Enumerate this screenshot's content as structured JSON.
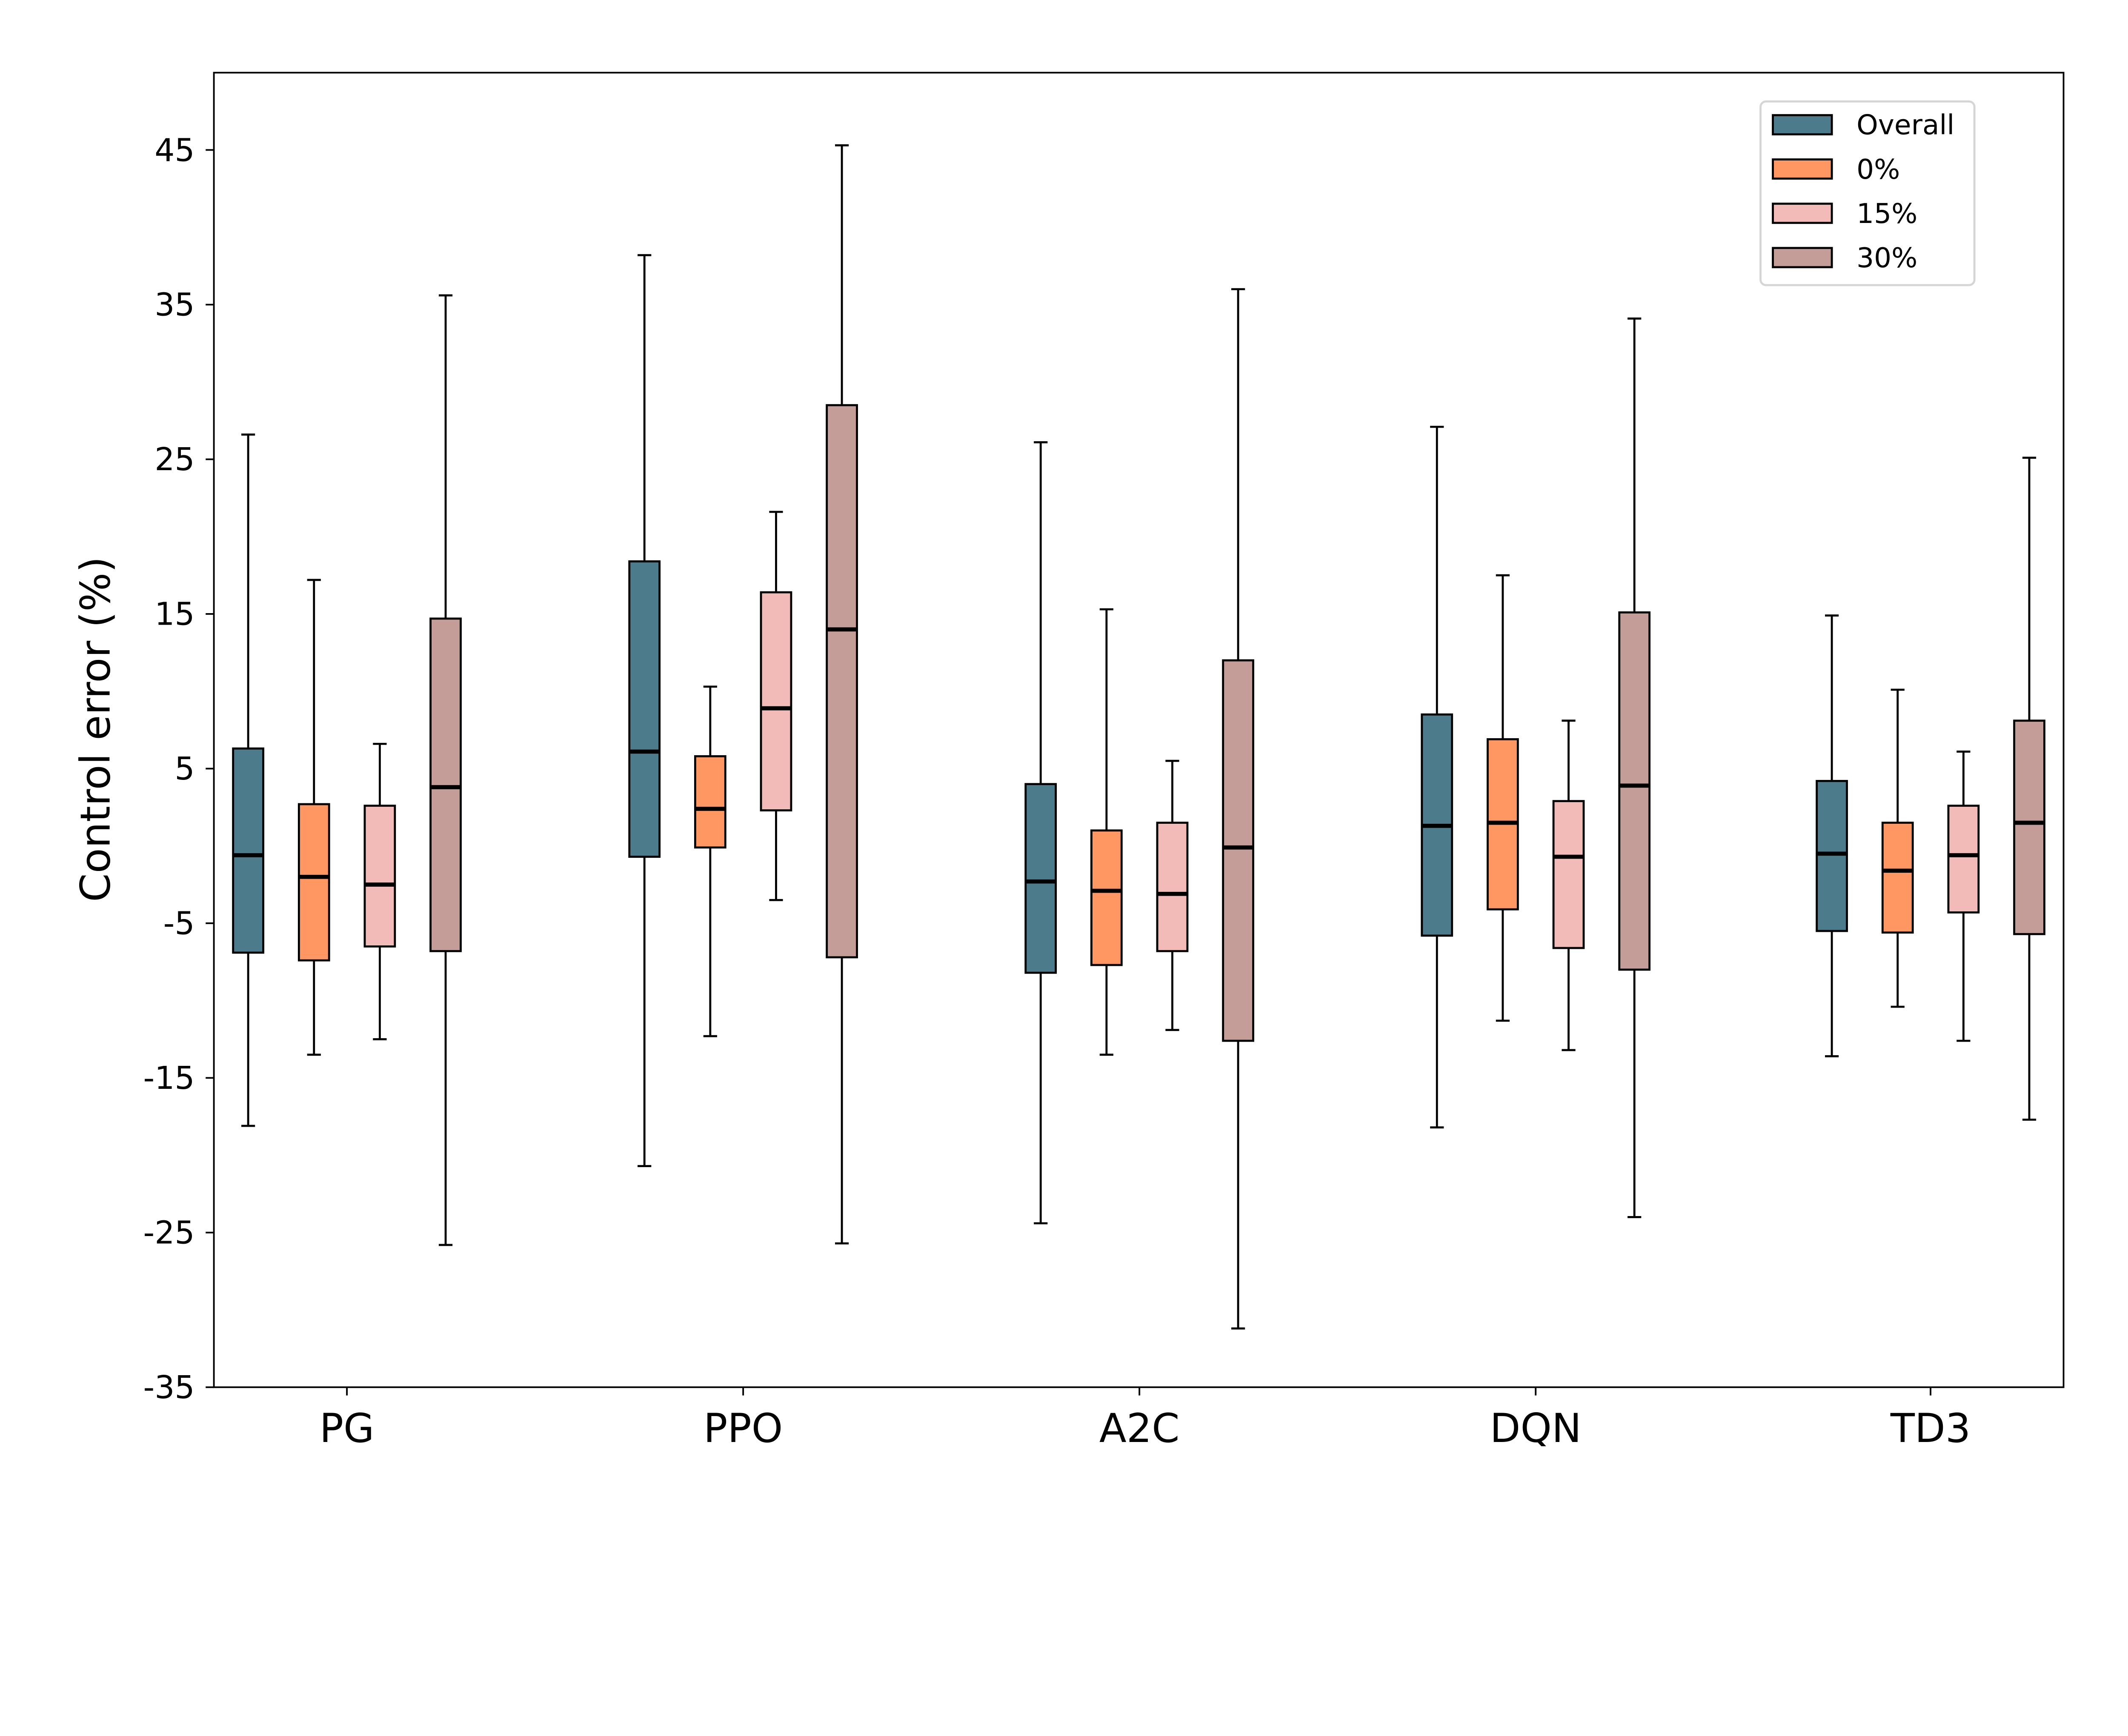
{
  "chart_data": {
    "type": "box",
    "title": "",
    "xlabel": "",
    "ylabel": "Control error (%)",
    "ylim": [
      -35,
      50
    ],
    "yticks": [
      45,
      35,
      25,
      15,
      5,
      -5,
      -15,
      -25,
      -35
    ],
    "categories": [
      "PG",
      "PPO",
      "A2C",
      "DQN",
      "TD3"
    ],
    "legend_position": "top-right",
    "grid": false,
    "series": [
      {
        "name": "Overall",
        "color": "#4c7b8b",
        "boxes": [
          {
            "whislo": -18.1,
            "q1": -6.9,
            "med": -0.6,
            "q3": 6.3,
            "whishi": 26.6
          },
          {
            "whislo": -20.7,
            "q1": -0.7,
            "med": 6.1,
            "q3": 18.4,
            "whishi": 38.2
          },
          {
            "whislo": -24.4,
            "q1": -8.2,
            "med": -2.3,
            "q3": 4.0,
            "whishi": 26.1
          },
          {
            "whislo": -18.2,
            "q1": -5.8,
            "med": 1.3,
            "q3": 8.5,
            "whishi": 27.1
          },
          {
            "whislo": -13.6,
            "q1": -5.5,
            "med": -0.5,
            "q3": 4.2,
            "whishi": 14.9
          }
        ]
      },
      {
        "name": "0%",
        "color": "#ff9762",
        "boxes": [
          {
            "whislo": -13.5,
            "q1": -7.4,
            "med": -2.0,
            "q3": 2.7,
            "whishi": 17.2
          },
          {
            "whislo": -12.3,
            "q1": -0.1,
            "med": 2.4,
            "q3": 5.8,
            "whishi": 10.3
          },
          {
            "whislo": -13.5,
            "q1": -7.7,
            "med": -2.9,
            "q3": 1.0,
            "whishi": 15.3
          },
          {
            "whislo": -11.3,
            "q1": -4.1,
            "med": 1.5,
            "q3": 6.9,
            "whishi": 17.5
          },
          {
            "whislo": -10.4,
            "q1": -5.6,
            "med": -1.6,
            "q3": 1.5,
            "whishi": 10.1
          }
        ]
      },
      {
        "name": "15%",
        "color": "#f2bbb7",
        "boxes": [
          {
            "whislo": -12.5,
            "q1": -6.5,
            "med": -2.5,
            "q3": 2.6,
            "whishi": 6.6
          },
          {
            "whislo": -3.5,
            "q1": 2.3,
            "med": 8.9,
            "q3": 16.4,
            "whishi": 21.6
          },
          {
            "whislo": -11.9,
            "q1": -6.8,
            "med": -3.1,
            "q3": 1.5,
            "whishi": 5.5
          },
          {
            "whislo": -13.2,
            "q1": -6.6,
            "med": -0.7,
            "q3": 2.9,
            "whishi": 8.1
          },
          {
            "whislo": -12.6,
            "q1": -4.3,
            "med": -0.6,
            "q3": 2.6,
            "whishi": 6.1
          }
        ]
      },
      {
        "name": "30%",
        "color": "#c49d98",
        "boxes": [
          {
            "whislo": -25.8,
            "q1": -6.8,
            "med": 3.8,
            "q3": 14.7,
            "whishi": 35.6
          },
          {
            "whislo": -25.7,
            "q1": -7.2,
            "med": 14.0,
            "q3": 28.5,
            "whishi": 45.3
          },
          {
            "whislo": -31.2,
            "q1": -12.6,
            "med": -0.1,
            "q3": 12.0,
            "whishi": 36.0
          },
          {
            "whislo": -24.0,
            "q1": -8.0,
            "med": 3.9,
            "q3": 15.1,
            "whishi": 34.1
          },
          {
            "whislo": -17.7,
            "q1": -5.7,
            "med": 1.5,
            "q3": 8.1,
            "whishi": 25.1
          }
        ]
      }
    ]
  }
}
